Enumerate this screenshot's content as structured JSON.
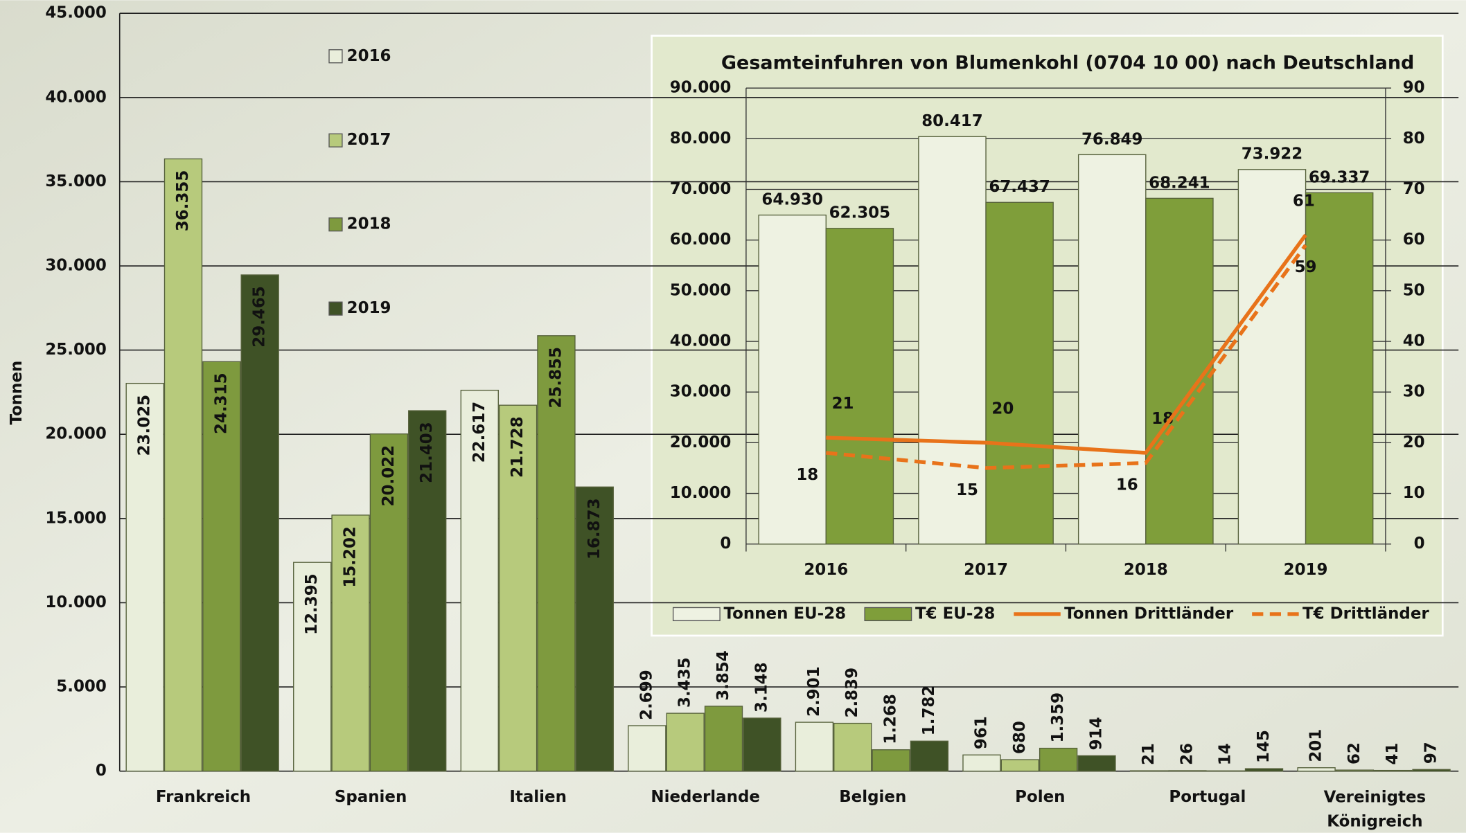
{
  "chart_data": [
    {
      "type": "bar",
      "ylabel": "Tonnen",
      "categories": [
        "Frankreich",
        "Spanien",
        "Italien",
        "Niederlande",
        "Belgien",
        "Polen",
        "Portugal",
        "Vereinigtes Königreich"
      ],
      "series": [
        {
          "name": "2016",
          "color": "#e9eedb",
          "values": [
            23025,
            12395,
            22617,
            2699,
            2901,
            961,
            21,
            201
          ],
          "value_labels": [
            "23.025",
            "12.395",
            "22.617",
            "2.699",
            "2.901",
            "961",
            "21",
            "201"
          ]
        },
        {
          "name": "2017",
          "color": "#b7ca7c",
          "values": [
            36355,
            15202,
            21728,
            3435,
            2839,
            680,
            26,
            62
          ],
          "value_labels": [
            "36.355",
            "15.202",
            "21.728",
            "3.435",
            "2.839",
            "680",
            "26",
            "62"
          ]
        },
        {
          "name": "2018",
          "color": "#7e9a3e",
          "values": [
            24315,
            20022,
            25855,
            3854,
            1268,
            1359,
            14,
            41
          ],
          "value_labels": [
            "24.315",
            "20.022",
            "25.855",
            "3.854",
            "1.268",
            "1.359",
            "14",
            "41"
          ]
        },
        {
          "name": "2019",
          "color": "#3f5226",
          "values": [
            29465,
            21403,
            16873,
            3148,
            1782,
            914,
            145,
            97
          ],
          "value_labels": [
            "29.465",
            "21.403",
            "16.873",
            "3.148",
            "1.782",
            "914",
            "145",
            "97"
          ]
        }
      ],
      "ylim": [
        0,
        45000
      ],
      "yticks": [
        0,
        {
          "value": 5000,
          "label": "5.000"
        },
        {
          "value": 10000,
          "label": "10.000"
        },
        {
          "value": 15000,
          "label": "15.000"
        },
        {
          "value": 20000,
          "label": "20.000"
        },
        {
          "value": 25000,
          "label": "25.000"
        },
        {
          "value": 30000,
          "label": "30.000"
        },
        {
          "value": 35000,
          "label": "35.000"
        },
        {
          "value": 40000,
          "label": "40.000"
        },
        {
          "value": 45000,
          "label": "45.000"
        }
      ],
      "grid": true,
      "legend": "top-left"
    },
    {
      "type": "bar-line",
      "title": "Gesamteinfuhren von Blumenkohl (0704 10 00) nach Deutschland",
      "categories": [
        "2016",
        "2017",
        "2018",
        "2019"
      ],
      "series": [
        {
          "name": "Tonnen EU-28",
          "color": "#eef2e2",
          "values": [
            64930,
            80417,
            76849,
            73922
          ],
          "value_labels": [
            "64.930",
            "80.417",
            "76.849",
            "73.922"
          ]
        },
        {
          "name": "T€ EU-28",
          "color": "#7f9e3a",
          "values": [
            62305,
            67437,
            68241,
            69337
          ],
          "value_labels": [
            "62.305",
            "67.437",
            "68.241",
            "69.337"
          ]
        },
        {
          "name": "Tonnen Drittländer",
          "color": "#e8731a",
          "axis": "y2",
          "style": "solid",
          "values": [
            21,
            20,
            18,
            61
          ]
        },
        {
          "name": "T€ Drittländer",
          "color": "#e8731a",
          "axis": "y2",
          "style": "dashed",
          "values": [
            18,
            15,
            16,
            59
          ]
        }
      ],
      "ylim": [
        0,
        90000
      ],
      "yticks": [
        0,
        {
          "value": 10000,
          "label": "10.000"
        },
        {
          "value": 20000,
          "label": "20.000"
        },
        {
          "value": 30000,
          "label": "30.000"
        },
        {
          "value": 40000,
          "label": "40.000"
        },
        {
          "value": 50000,
          "label": "50.000"
        },
        {
          "value": 60000,
          "label": "60.000"
        },
        {
          "value": 70000,
          "label": "70.000"
        },
        {
          "value": 80000,
          "label": "80.000"
        },
        {
          "value": 90000,
          "label": "90.000"
        }
      ],
      "y2lim": [
        0,
        90
      ],
      "y2ticks": [
        0,
        10,
        20,
        30,
        40,
        50,
        60,
        70,
        80,
        90
      ],
      "grid": true,
      "legend": "bottom"
    }
  ]
}
